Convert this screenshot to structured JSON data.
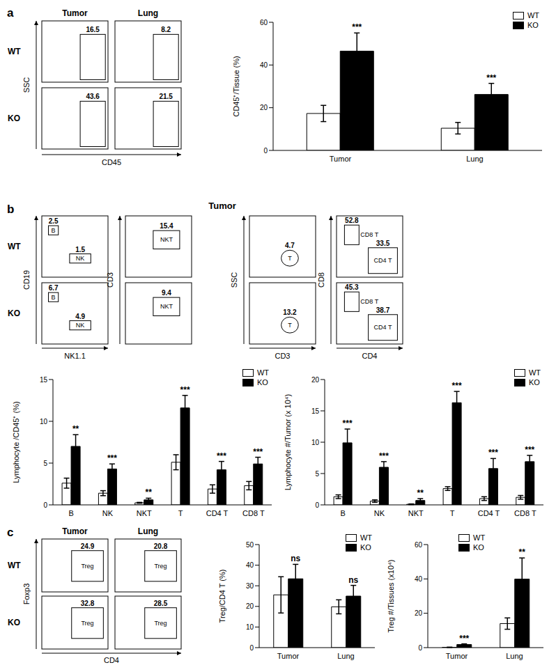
{
  "flow_panels": [
    {
      "label": "a",
      "rows": [
        "WT",
        "KO"
      ],
      "x_label": "CD45",
      "y_label": "SSC",
      "plots": [
        {
          "title": "Tumor",
          "gates": [
            [
              {
                "value": 16.5
              }
            ],
            [
              {
                "value": 43.6
              }
            ]
          ]
        },
        {
          "title": "Lung",
          "gates": [
            [
              {
                "value": 8.2
              }
            ],
            [
              {
                "value": 21.5
              }
            ]
          ]
        }
      ]
    },
    {
      "label": "b",
      "title": "Tumor",
      "rows": [
        "WT",
        "KO"
      ],
      "plots": [
        {
          "x_label": "NK1.1",
          "y_label": "CD19",
          "gates": [
            [
              {
                "name": "B",
                "value": 2.5
              },
              {
                "name": "NK",
                "value": 1.5
              }
            ],
            [
              {
                "name": "B",
                "value": 6.7
              },
              {
                "name": "NK",
                "value": 4.9
              }
            ]
          ]
        },
        {
          "y_label": "CD3",
          "gates": [
            [
              {
                "name": "NKT",
                "value": 15.4
              }
            ],
            [
              {
                "name": "NKT",
                "value": 9.4
              }
            ]
          ]
        },
        {
          "x_label": "CD3",
          "y_label": "SSC",
          "gates": [
            [
              {
                "name": "T",
                "value": 4.7
              }
            ],
            [
              {
                "name": "T",
                "value": 13.2
              }
            ]
          ]
        },
        {
          "x_label": "CD4",
          "y_label": "CD8",
          "gates": [
            [
              {
                "name": "CD8 T",
                "value": 52.8
              },
              {
                "name": "CD4 T",
                "value": 33.5
              }
            ],
            [
              {
                "name": "CD8 T",
                "value": 45.3
              },
              {
                "name": "CD4 T",
                "value": 38.7
              }
            ]
          ]
        }
      ]
    },
    {
      "label": "c",
      "rows": [
        "WT",
        "KO"
      ],
      "x_label": "CD4",
      "y_label": "Foxp3",
      "plots": [
        {
          "title": "Tumor",
          "gates": [
            [
              {
                "name": "Treg",
                "value": 24.9
              }
            ],
            [
              {
                "name": "Treg",
                "value": 32.8
              }
            ]
          ]
        },
        {
          "title": "Lung",
          "gates": [
            [
              {
                "name": "Treg",
                "value": 20.8
              }
            ],
            [
              {
                "name": "Treg",
                "value": 28.5
              }
            ]
          ]
        }
      ]
    }
  ],
  "chart_data": [
    {
      "type": "bar",
      "y_label": "CD45⁺/Tissue (%)",
      "categories": [
        "Tumor",
        "Lung"
      ],
      "series": [
        {
          "name": "WT",
          "color": "#ffffff",
          "values": [
            17.3,
            10.4
          ],
          "errors": [
            3.8,
            2.7
          ]
        },
        {
          "name": "KO",
          "color": "#000000",
          "values": [
            46.5,
            26.2
          ],
          "errors": [
            8.5,
            5.2
          ],
          "annotations": [
            "***",
            "***"
          ]
        }
      ],
      "ylim": [
        0,
        60
      ],
      "yticks": [
        0,
        20,
        40,
        60
      ],
      "legend": "upper right"
    },
    {
      "type": "bar",
      "y_label": "Lymphocyte /CD45⁺ (%)",
      "categories": [
        "B",
        "NK",
        "NKT",
        "T",
        "CD4 T",
        "CD8 T"
      ],
      "series": [
        {
          "name": "WT",
          "color": "#ffffff",
          "values": [
            2.6,
            1.4,
            0.25,
            5.1,
            1.9,
            2.3
          ],
          "errors": [
            0.6,
            0.3,
            0.05,
            0.9,
            0.5,
            0.5
          ]
        },
        {
          "name": "KO",
          "color": "#000000",
          "values": [
            7.0,
            4.3,
            0.6,
            11.6,
            4.2,
            4.9
          ],
          "errors": [
            1.4,
            0.6,
            0.2,
            1.5,
            1.0,
            0.8
          ],
          "annotations": [
            "**",
            "***",
            "**",
            "***",
            "***",
            "***"
          ]
        }
      ],
      "ylim": [
        0,
        15
      ],
      "yticks": [
        0,
        5,
        10,
        15
      ],
      "legend": "upper right"
    },
    {
      "type": "bar",
      "y_label": "Lymphocyte #/Tumor (x 10⁴)",
      "categories": [
        "B",
        "NK",
        "NKT",
        "T",
        "CD4 T",
        "CD8 T"
      ],
      "series": [
        {
          "name": "WT",
          "color": "#ffffff",
          "values": [
            1.3,
            0.6,
            0.1,
            2.6,
            1.0,
            1.2
          ],
          "errors": [
            0.3,
            0.2,
            0.05,
            0.3,
            0.3,
            0.3
          ]
        },
        {
          "name": "KO",
          "color": "#000000",
          "values": [
            9.9,
            6.0,
            0.7,
            16.3,
            5.8,
            6.9
          ],
          "errors": [
            2.2,
            0.9,
            0.3,
            1.8,
            1.6,
            1.0
          ],
          "annotations": [
            "***",
            "***",
            "**",
            "***",
            "***",
            "***"
          ]
        }
      ],
      "ylim": [
        0,
        20
      ],
      "yticks": [
        0,
        5,
        10,
        15,
        20
      ],
      "legend": "upper right"
    },
    {
      "type": "bar",
      "y_label": "Treg/CD4 T (%)",
      "categories": [
        "Tumor",
        "Lung"
      ],
      "series": [
        {
          "name": "WT",
          "color": "#ffffff",
          "values": [
            25.6,
            19.8
          ],
          "errors": [
            8.8,
            3.4
          ]
        },
        {
          "name": "KO",
          "color": "#000000",
          "values": [
            33.4,
            25.0
          ],
          "errors": [
            7.0,
            5.2
          ],
          "annotations": [
            "ns",
            "ns"
          ]
        }
      ],
      "ylim": [
        0,
        50
      ],
      "yticks": [
        0,
        10,
        20,
        30,
        40,
        50
      ],
      "legend": "upper right"
    },
    {
      "type": "bar",
      "y_label": "Treg #/Tissues (x10⁴)",
      "categories": [
        "Tumor",
        "Lung"
      ],
      "series": [
        {
          "name": "WT",
          "color": "#ffffff",
          "values": [
            0.2,
            14.0
          ],
          "errors": [
            0.1,
            3.3
          ]
        },
        {
          "name": "KO",
          "color": "#000000",
          "values": [
            1.8,
            39.9
          ],
          "errors": [
            0.4,
            12.3
          ],
          "annotations": [
            "***",
            "**"
          ]
        }
      ],
      "ylim": [
        0,
        60
      ],
      "yticks": [
        0,
        20,
        40,
        60
      ],
      "legend": "upper center"
    }
  ]
}
